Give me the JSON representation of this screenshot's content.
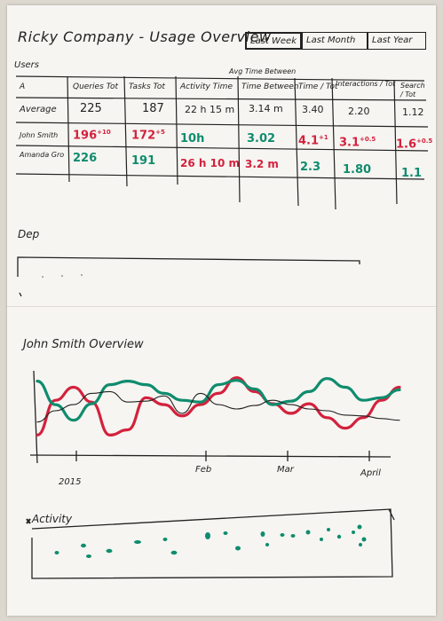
{
  "header": {
    "title": "Ricky Company - Usage Overview",
    "tabs": [
      {
        "label": "Last Week",
        "active": true
      },
      {
        "label": "Last Month",
        "active": false
      },
      {
        "label": "Last Year",
        "active": false
      }
    ]
  },
  "users_table": {
    "section_label": "Users",
    "group_header": "Avg Time Between",
    "columns": [
      "A",
      "Queries Tot",
      "Tasks Tot",
      "Activity Time",
      "Time Between",
      "Time / Tot",
      "Interactions / Tot",
      "Search / Tot"
    ],
    "rows": [
      {
        "name": "Average",
        "style": "plain",
        "cells": [
          "225",
          "187",
          "22 h 15 m",
          "3.14 m",
          "3.40",
          "2.20",
          "1.12"
        ]
      },
      {
        "name": "John Smith",
        "style": "colored",
        "cells": [
          {
            "text": "196",
            "sup": "+10",
            "color": "red"
          },
          {
            "text": "172",
            "sup": "+5",
            "color": "red"
          },
          {
            "text": "10h",
            "sup": "",
            "color": "green"
          },
          {
            "text": "3.02",
            "sup": "",
            "color": "green"
          },
          {
            "text": "4.1",
            "sup": "+1",
            "color": "red"
          },
          {
            "text": "3.1",
            "sup": "+0.5",
            "color": "red"
          },
          {
            "text": "1.6",
            "sup": "+0.5",
            "color": "red"
          }
        ]
      },
      {
        "name": "Amanda Gro",
        "style": "colored",
        "cells": [
          {
            "text": "226",
            "sup": "",
            "color": "green"
          },
          {
            "text": "191",
            "sup": "",
            "color": "green"
          },
          {
            "text": "26 h 10 m",
            "sup": "",
            "color": "red"
          },
          {
            "text": "3.2 m",
            "sup": "",
            "color": "red"
          },
          {
            "text": "2.3",
            "sup": "",
            "color": "green"
          },
          {
            "text": "1.80",
            "sup": "",
            "color": "green"
          },
          {
            "text": "1.1",
            "sup": "",
            "color": "green"
          }
        ]
      }
    ]
  },
  "dep_section": {
    "label": "Dep"
  },
  "overview": {
    "title": "John Smith Overview",
    "x_ticks": [
      "2015",
      "Feb",
      "Mar",
      "April"
    ]
  },
  "activity": {
    "label": "Activity"
  },
  "colors": {
    "ink": "#222222",
    "red": "#d3223d",
    "green": "#0f8c6e",
    "paper": "#f6f5f1"
  },
  "chart_data": {
    "type": "line",
    "title": "John Smith Overview",
    "categories": [
      "2015",
      "Feb",
      "Mar",
      "April"
    ],
    "x": [
      0,
      0.5,
      1,
      1.5,
      2,
      2.5,
      3,
      3.5,
      4,
      4.5,
      5,
      5.5,
      6,
      6.5,
      7,
      7.5,
      8,
      8.5,
      9,
      9.5,
      10
    ],
    "series": [
      {
        "color": "red",
        "values": [
          2.0,
          6.0,
          7.5,
          5.8,
          2.0,
          2.6,
          6.3,
          5.5,
          4.2,
          5.5,
          6.8,
          8.6,
          7.0,
          5.6,
          4.5,
          5.6,
          4.0,
          2.8,
          4.0,
          6.0,
          7.5
        ]
      },
      {
        "color": "green",
        "values": [
          8.2,
          5.5,
          3.7,
          5.6,
          7.8,
          8.2,
          7.8,
          6.8,
          6.0,
          5.8,
          7.8,
          8.3,
          7.3,
          5.5,
          5.9,
          7.0,
          8.5,
          7.5,
          6.0,
          6.3,
          7.2
        ]
      },
      {
        "color": "black",
        "values": [
          3.5,
          4.8,
          5.5,
          6.8,
          7.0,
          5.8,
          5.9,
          6.5,
          4.5,
          6.8,
          5.5,
          5.0,
          5.4,
          6.0,
          5.5,
          5.0,
          4.8,
          4.3,
          4.2,
          3.9,
          3.7
        ]
      }
    ],
    "ylim": [
      0,
      10
    ],
    "grid": false,
    "legend": "none"
  }
}
